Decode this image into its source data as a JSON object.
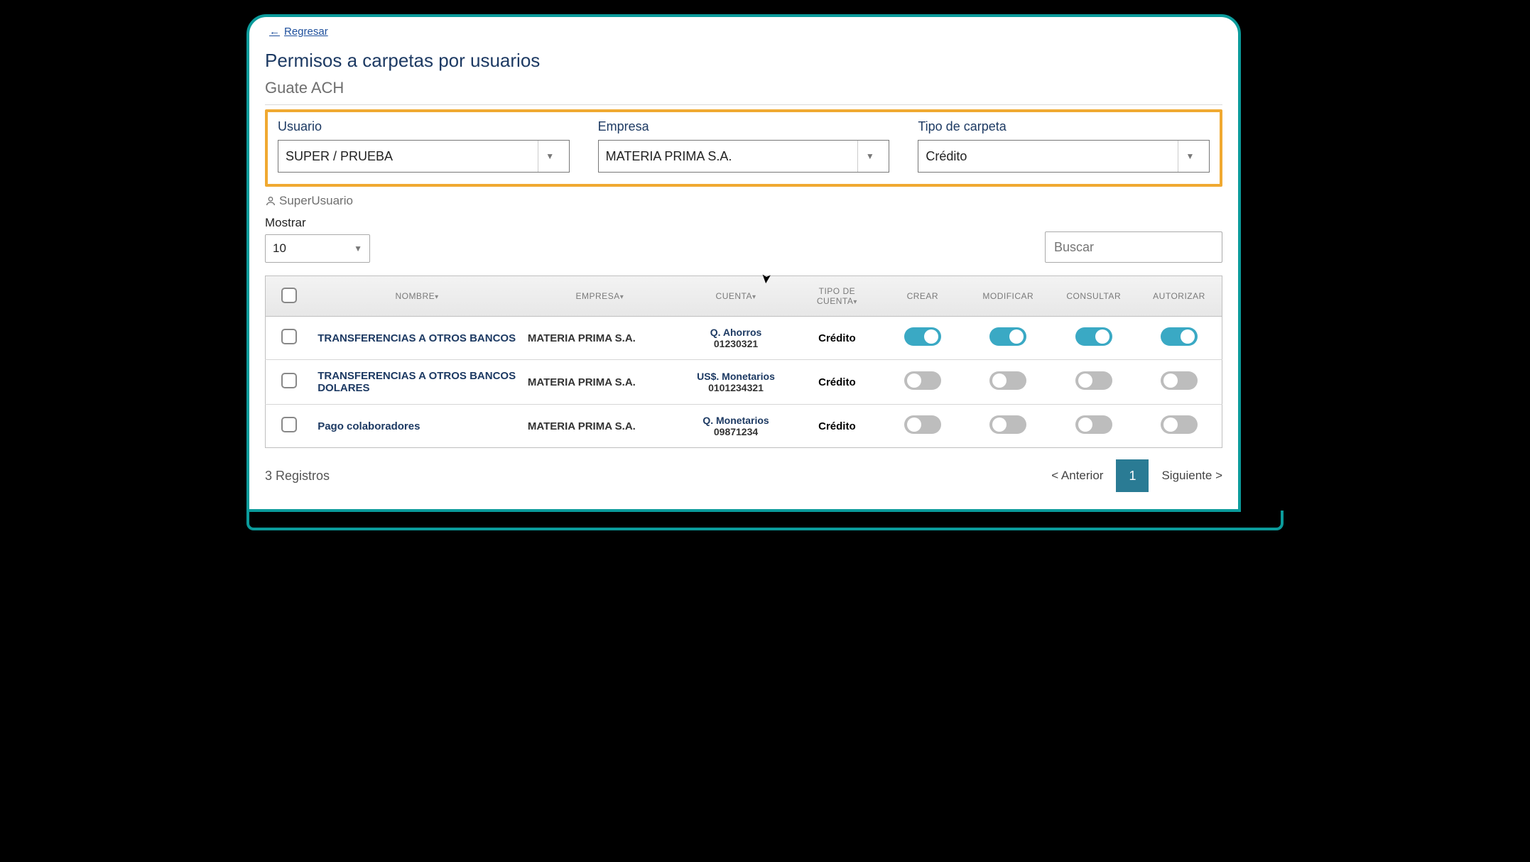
{
  "nav": {
    "back": "Regresar"
  },
  "header": {
    "title": "Permisos a carpetas por usuarios",
    "subtitle": "Guate ACH"
  },
  "filters": {
    "usuario": {
      "label": "Usuario",
      "value": "SUPER / PRUEBA"
    },
    "empresa": {
      "label": "Empresa",
      "value": "MATERIA PRIMA S.A."
    },
    "tipo": {
      "label": "Tipo de carpeta",
      "value": "Crédito"
    },
    "highlight_color": "#f0a931"
  },
  "user_badge": "SuperUsuario",
  "list_controls": {
    "mostrar_label": "Mostrar",
    "mostrar_value": "10",
    "search_placeholder": "Buscar"
  },
  "table": {
    "columns": {
      "nombre": "NOMBRE",
      "empresa": "EMPRESA",
      "cuenta": "CUENTA",
      "tipo_cuenta_l1": "TIPO DE",
      "tipo_cuenta_l2": "CUENTA",
      "crear": "CREAR",
      "modificar": "MODIFICAR",
      "consultar": "CONSULTAR",
      "autorizar": "AUTORIZAR"
    },
    "rows": [
      {
        "nombre": "TRANSFERENCIAS A OTROS BANCOS",
        "empresa": "MATERIA PRIMA S.A.",
        "cuenta_main": "Q. Ahorros",
        "cuenta_sub": "01230321",
        "tipo": "Crédito",
        "crear": true,
        "modificar": true,
        "consultar": true,
        "autorizar": true
      },
      {
        "nombre": "TRANSFERENCIAS A OTROS BANCOS DOLARES",
        "empresa": "MATERIA PRIMA S.A.",
        "cuenta_main": "US$. Monetarios",
        "cuenta_sub": "0101234321",
        "tipo": "Crédito",
        "crear": false,
        "modificar": false,
        "consultar": false,
        "autorizar": false
      },
      {
        "nombre": "Pago colaboradores",
        "empresa": "MATERIA PRIMA S.A.",
        "cuenta_main": "Q. Monetarios",
        "cuenta_sub": "09871234",
        "tipo": "Crédito",
        "crear": false,
        "modificar": false,
        "consultar": false,
        "autorizar": false
      }
    ]
  },
  "footer": {
    "count": "3 Registros",
    "prev": "< Anterior",
    "page": "1",
    "next": "Siguiente >"
  },
  "colors": {
    "frame": "#0b9b9b",
    "primary_text": "#1d3a63",
    "toggle_on": "#3aa9c4",
    "toggle_off": "#bdbdbd",
    "pager_active": "#2a7b94"
  }
}
